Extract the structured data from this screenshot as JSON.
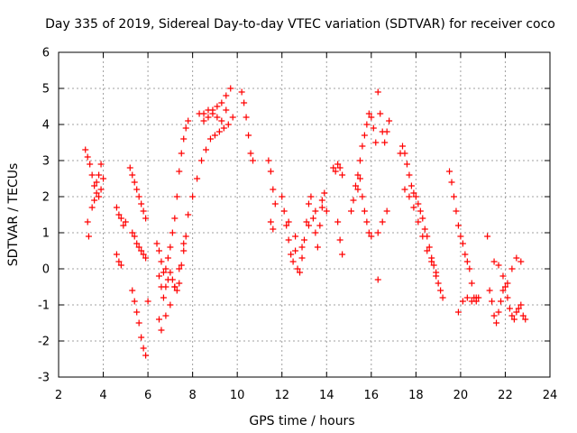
{
  "chart_data": {
    "type": "scatter",
    "title": "Day 335 of 2019, Sidereal Day-to-day VTEC variation (SDTVAR) for receiver coco",
    "xlabel": "GPS time / hours",
    "ylabel": "SDTVAR / TECUs",
    "xlim": [
      2,
      24
    ],
    "ylim": [
      -3,
      6
    ],
    "xticks": [
      2,
      4,
      6,
      8,
      10,
      12,
      14,
      16,
      18,
      20,
      22,
      24
    ],
    "yticks": [
      -3,
      -2,
      -1,
      0,
      1,
      2,
      3,
      4,
      5,
      6
    ],
    "grid": true,
    "marker": "+",
    "colors": {
      "series": "#ff0000",
      "axes": "#000000",
      "grid": "#a0a0a0"
    },
    "series": [
      {
        "name": "SDTVAR",
        "x": [
          3.2,
          3.3,
          3.4,
          3.5,
          3.6,
          3.7,
          3.8,
          3.9,
          4.0,
          3.3,
          3.35,
          3.5,
          3.6,
          3.7,
          3.8,
          3.9,
          4.6,
          4.7,
          4.8,
          4.9,
          5.0,
          4.6,
          4.7,
          4.8,
          5.2,
          5.3,
          5.4,
          5.5,
          5.6,
          5.7,
          5.8,
          5.9,
          5.3,
          5.4,
          5.5,
          5.6,
          5.7,
          5.8,
          5.9,
          5.3,
          5.4,
          5.5,
          5.6,
          5.7,
          5.8,
          5.9,
          6.0,
          6.4,
          6.5,
          6.6,
          6.7,
          6.8,
          6.9,
          7.0,
          7.1,
          7.2,
          7.3,
          7.4,
          7.5,
          7.6,
          7.7,
          7.8,
          6.5,
          6.6,
          6.7,
          6.8,
          6.9,
          7.0,
          7.1,
          7.2,
          7.3,
          7.4,
          7.5,
          7.6,
          7.7,
          6.5,
          6.6,
          6.8,
          7.0,
          7.2,
          7.4,
          7.6,
          7.8,
          8.0,
          8.2,
          8.4,
          8.6,
          8.8,
          9.0,
          9.2,
          9.4,
          9.6,
          9.8,
          8.3,
          8.5,
          8.7,
          8.9,
          9.1,
          9.3,
          9.5,
          9.7,
          10.2,
          10.3,
          10.4,
          10.5,
          10.6,
          10.7,
          8.5,
          8.7,
          8.9,
          9.1,
          9.3,
          9.5,
          11.4,
          11.5,
          11.6,
          11.7,
          11.5,
          11.6,
          12.0,
          12.1,
          12.2,
          12.3,
          12.4,
          12.5,
          12.6,
          12.7,
          12.8,
          12.9,
          13.0,
          13.1,
          13.2,
          13.3,
          13.4,
          13.5,
          13.6,
          13.7,
          13.8,
          13.9,
          14.0,
          12.3,
          12.6,
          12.9,
          13.2,
          13.5,
          13.8,
          14.3,
          14.4,
          14.5,
          14.6,
          14.7,
          14.5,
          14.6,
          14.7,
          15.1,
          15.2,
          15.3,
          15.4,
          15.5,
          15.6,
          15.7,
          15.8,
          15.9,
          16.0,
          16.1,
          16.2,
          16.3,
          16.4,
          16.5,
          16.6,
          16.7,
          16.8,
          15.4,
          15.5,
          15.6,
          15.7,
          15.8,
          15.9,
          16.0,
          16.3,
          16.3,
          16.5,
          16.7,
          17.3,
          17.4,
          17.5,
          17.6,
          17.7,
          17.8,
          17.9,
          18.0,
          18.1,
          18.2,
          18.3,
          18.4,
          18.5,
          18.6,
          18.7,
          18.8,
          18.9,
          19.0,
          19.1,
          19.2,
          17.5,
          17.7,
          17.9,
          18.1,
          18.3,
          18.5,
          18.7,
          18.9,
          19.5,
          19.6,
          19.7,
          19.8,
          19.9,
          20.0,
          20.1,
          20.2,
          20.3,
          20.4,
          20.5,
          20.6,
          20.7,
          20.8,
          19.9,
          20.1,
          20.3,
          20.5,
          20.7,
          21.2,
          21.3,
          21.4,
          21.5,
          21.6,
          21.7,
          21.8,
          21.9,
          22.0,
          22.1,
          22.2,
          22.3,
          22.4,
          22.5,
          22.6,
          22.7,
          22.8,
          22.9,
          21.5,
          21.7,
          21.9,
          22.1,
          22.3,
          22.5,
          22.7
        ],
        "y": [
          3.3,
          3.1,
          2.9,
          2.6,
          2.3,
          2.1,
          2.0,
          2.2,
          2.5,
          1.3,
          0.9,
          1.7,
          1.9,
          2.4,
          2.6,
          2.9,
          1.7,
          1.5,
          1.4,
          1.2,
          1.3,
          0.4,
          0.2,
          0.1,
          2.8,
          2.6,
          2.4,
          2.2,
          2.0,
          1.8,
          1.6,
          1.4,
          -0.6,
          -0.9,
          -1.2,
          -1.5,
          -1.9,
          -2.2,
          -2.4,
          1.0,
          0.9,
          0.7,
          0.6,
          0.5,
          0.4,
          0.3,
          -0.9,
          0.7,
          0.5,
          0.2,
          -0.1,
          0.0,
          0.3,
          0.6,
          1.0,
          1.4,
          2.0,
          2.7,
          3.2,
          3.6,
          3.9,
          4.1,
          -0.2,
          -0.5,
          -0.8,
          -0.5,
          -0.3,
          -0.1,
          -0.3,
          -0.5,
          -0.6,
          -0.4,
          0.1,
          0.5,
          0.9,
          -1.4,
          -1.7,
          -1.3,
          -1.0,
          -0.5,
          0.0,
          0.7,
          1.5,
          2.0,
          2.5,
          3.0,
          3.3,
          3.6,
          3.7,
          3.8,
          3.9,
          4.0,
          4.2,
          4.3,
          4.3,
          4.4,
          4.4,
          4.5,
          4.6,
          4.8,
          5.0,
          4.9,
          4.6,
          4.2,
          3.7,
          3.2,
          3.0,
          4.1,
          4.2,
          4.3,
          4.2,
          4.1,
          4.4,
          3.0,
          2.7,
          2.2,
          1.8,
          1.3,
          1.1,
          2.0,
          1.6,
          1.2,
          0.8,
          0.4,
          0.2,
          0.5,
          0.0,
          -0.1,
          0.3,
          0.8,
          1.3,
          1.8,
          2.0,
          1.4,
          1.0,
          0.6,
          1.2,
          1.7,
          2.1,
          1.6,
          1.3,
          0.9,
          0.6,
          1.2,
          1.6,
          1.9,
          2.8,
          2.7,
          2.9,
          2.8,
          2.6,
          1.3,
          0.8,
          0.4,
          1.6,
          1.9,
          2.3,
          2.6,
          3.0,
          3.4,
          3.7,
          4.0,
          4.3,
          4.2,
          3.9,
          3.5,
          4.9,
          4.3,
          3.8,
          3.5,
          3.8,
          4.1,
          2.2,
          2.5,
          2.0,
          1.6,
          1.3,
          1.0,
          0.9,
          -0.3,
          1.0,
          1.3,
          1.6,
          3.2,
          3.4,
          3.2,
          2.9,
          2.6,
          2.3,
          2.1,
          2.0,
          1.8,
          1.6,
          1.4,
          1.1,
          0.9,
          0.6,
          0.3,
          0.1,
          -0.2,
          -0.4,
          -0.6,
          -0.8,
          2.2,
          2.0,
          1.7,
          1.3,
          0.9,
          0.5,
          0.2,
          -0.1,
          2.7,
          2.4,
          2.0,
          1.6,
          1.2,
          0.9,
          0.7,
          0.4,
          0.2,
          0.0,
          -0.4,
          -0.8,
          -0.9,
          -0.8,
          -1.2,
          -0.9,
          -0.8,
          -0.9,
          -0.8,
          0.9,
          -0.6,
          -0.9,
          -1.3,
          -1.5,
          -1.2,
          -0.9,
          -0.6,
          -0.5,
          -0.8,
          -1.1,
          -1.3,
          -1.4,
          -1.2,
          -1.1,
          -1.0,
          -1.3,
          -1.4,
          0.2,
          0.1,
          -0.2,
          -0.4,
          0.0,
          0.3,
          0.2
        ]
      }
    ]
  }
}
